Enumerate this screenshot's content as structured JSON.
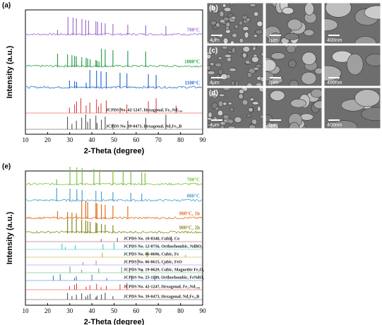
{
  "panel_a": {
    "label": "(a)",
    "x_label": "2-Theta (degree)",
    "y_label": "Intensity (a.u.)",
    "xlim": [
      10,
      90
    ],
    "xticks": [
      10,
      20,
      30,
      40,
      50,
      60,
      70,
      80,
      90
    ],
    "traces": [
      {
        "name": "700°C",
        "color": "#a070d0",
        "peaks": [
          24.5,
          29.2,
          31.5,
          33.0,
          35.5,
          37.2,
          38.5,
          41.8,
          42.6,
          44.3,
          46.0,
          49.5,
          56.2,
          64.3,
          73.4
        ]
      },
      {
        "name": "1000°C",
        "color": "#30a050",
        "peaks": [
          24.5,
          29.0,
          31.0,
          32.2,
          33.0,
          35.4,
          37.4,
          38.1,
          39.2,
          41.8,
          42.3,
          43.2,
          44.3,
          46.0,
          49.5,
          56.2,
          64.3
        ]
      },
      {
        "name": "1100°C",
        "color": "#2a6fd0",
        "peaks": [
          29.9,
          32.2,
          33.1,
          37.4,
          39.1,
          42.1,
          44.1,
          46.5,
          52.7,
          55.8,
          65.5,
          69.0
        ]
      }
    ],
    "references": [
      {
        "name": "JCPDS No. 42-1247, Hexagonal, Fe₁₇Nd₁.₈₉",
        "color": "#e03030",
        "peaks": [
          29.9,
          32.2,
          33.1,
          35.0,
          37.4,
          39.1,
          42.1,
          43.0,
          44.1,
          46.5,
          52.7,
          55.8,
          65.5,
          69.0,
          78.0
        ]
      },
      {
        "name": "JCPDS No. 39-0473, Hexagonal, Nd₂Fe₁₄B",
        "color": "#404040",
        "peaks": [
          29.0,
          31.0,
          33.0,
          35.4,
          37.2,
          38.1,
          39.2,
          41.8,
          42.3,
          44.3,
          46.0,
          49.5,
          56.2,
          64.3,
          73.4
        ]
      }
    ]
  },
  "sem": {
    "scales": [
      "4μm",
      "1μm",
      "400nm"
    ],
    "rows": [
      "(b)",
      "(c)",
      "(d)"
    ]
  },
  "panel_e": {
    "label": "(e)",
    "x_label": "2-Theta (degree)",
    "y_label": "Intensity (a.u.)",
    "xlim": [
      10,
      90
    ],
    "xticks": [
      10,
      20,
      30,
      40,
      50,
      60,
      70,
      80,
      90
    ],
    "traces": [
      {
        "name": "700°C",
        "color": "#80c040",
        "peaks": [
          24.1,
          30.1,
          33.2,
          35.6,
          40.9,
          43.5,
          49.5,
          54.1,
          57.6,
          62.5,
          64.0
        ]
      },
      {
        "name": "800°C",
        "color": "#4aa0d0",
        "peaks": [
          24.1,
          30.1,
          33.2,
          35.6,
          41.8,
          44.3,
          49.5,
          57.6,
          62.5
        ]
      },
      {
        "name": "900°C, 1h",
        "color": "#e07020",
        "peaks": [
          24.5,
          29.0,
          31.0,
          33.0,
          35.4,
          37.2,
          38.1,
          41.8,
          42.3,
          44.3,
          46.0,
          49.5,
          56.2
        ]
      },
      {
        "name": "900°C, 2h",
        "color": "#8a8a20",
        "peaks": [
          29.0,
          31.0,
          33.0,
          35.4,
          37.2,
          38.1,
          39.2,
          41.8,
          42.3,
          44.3,
          46.0,
          49.5
        ]
      }
    ],
    "references": [
      {
        "name": "JCPDS No. 18-0348, Cubic, Co",
        "color": "#8a4060",
        "peaks": [
          44.2,
          51.5,
          75.8
        ]
      },
      {
        "name": "JCPDS No. 12-0756, Orthorhombic, NdBO₃",
        "color": "#30c0c0",
        "peaks": [
          26.5,
          28.0,
          32.5,
          45.0,
          50.0
        ]
      },
      {
        "name": "JCPDS No. 06-0696, Cubic, Fe",
        "color": "#c0a020",
        "peaks": [
          44.7,
          65.0,
          82.3
        ]
      },
      {
        "name": "JCPDS No. 06-0615, Cubic, FeO",
        "color": "#b070d0",
        "peaks": [
          36.0,
          41.9,
          60.7,
          72.6
        ]
      },
      {
        "name": "JCPDS No. 19-0629, Cubic, Magnetite Fe₃O₄",
        "color": "#40b060",
        "peaks": [
          30.1,
          35.4,
          43.1,
          53.4,
          57.0,
          62.6
        ]
      },
      {
        "name": "JCPDS No. 25-1149, Orthorhombic, FeNdO₃",
        "color": "#3070d0",
        "peaks": [
          22.6,
          25.7,
          32.2,
          33.0,
          40.0,
          46.7,
          58.0,
          68.4
        ]
      },
      {
        "name": "JCPDS No. 42-1247, Hexagonal, Fe₁₇Nd₁.₈₉",
        "color": "#e03030",
        "peaks": [
          29.9,
          32.2,
          33.1,
          37.4,
          39.1,
          42.1,
          44.1,
          46.5,
          52.7,
          55.8
        ]
      },
      {
        "name": "JCPDS No. 39-0473, Hexagonal, Nd₂Fe₁₄B",
        "color": "#404040",
        "peaks": [
          29.0,
          31.0,
          33.0,
          35.4,
          37.2,
          38.1,
          39.2,
          41.8,
          42.3,
          44.3,
          46.0,
          49.5
        ]
      }
    ]
  }
}
